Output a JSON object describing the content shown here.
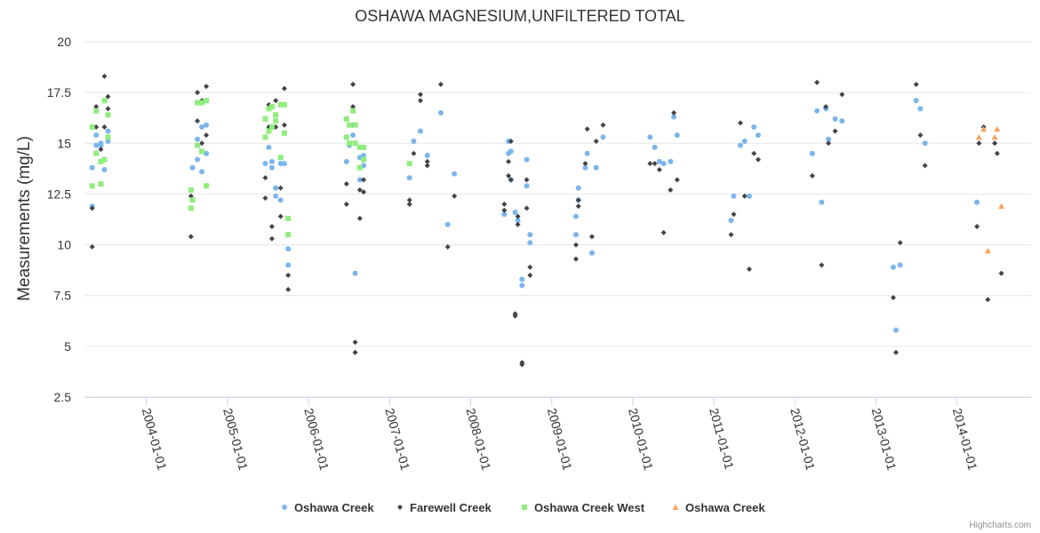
{
  "chart_data": {
    "type": "scatter",
    "title": "OSHAWA MAGNESIUM,UNFILTERED TOTAL",
    "xlabel": "",
    "ylabel": "Measurements (mg/L)",
    "ylim": [
      2.5,
      20
    ],
    "yticks": [
      "2.5",
      "5",
      "7.5",
      "10",
      "12.5",
      "15",
      "17.5",
      "20"
    ],
    "xticks": [
      "2004-01-01",
      "2005-01-01",
      "2006-01-01",
      "2007-01-01",
      "2008-01-01",
      "2009-01-01",
      "2010-01-01",
      "2011-01-01",
      "2012-01-01",
      "2013-01-01",
      "2014-01-01"
    ],
    "xlim": [
      "2003-03-28",
      "2014-12-01"
    ],
    "grid": "horizontal",
    "legend_position": "bottom",
    "credits": "Highcharts.com",
    "series": [
      {
        "name": "Oshawa Creek",
        "color": "#7cb5ec",
        "marker": "circle",
        "points": [
          [
            "2003-05-02",
            13.8
          ],
          [
            "2003-05-02",
            11.9
          ],
          [
            "2003-05-20",
            15.4
          ],
          [
            "2003-05-20",
            14.9
          ],
          [
            "2003-06-10",
            15.0
          ],
          [
            "2003-06-10",
            14.9
          ],
          [
            "2003-06-26",
            13.7
          ],
          [
            "2003-07-12",
            15.6
          ],
          [
            "2003-07-12",
            15.1
          ],
          [
            "2004-07-27",
            13.8
          ],
          [
            "2004-08-18",
            15.2
          ],
          [
            "2004-08-18",
            14.2
          ],
          [
            "2004-09-07",
            15.8
          ],
          [
            "2004-09-07",
            13.6
          ],
          [
            "2004-09-27",
            15.9
          ],
          [
            "2004-09-27",
            14.5
          ],
          [
            "2005-06-20",
            14.0
          ],
          [
            "2005-07-06",
            14.8
          ],
          [
            "2005-07-20",
            14.1
          ],
          [
            "2005-07-20",
            13.8
          ],
          [
            "2005-08-06",
            12.8
          ],
          [
            "2005-08-06",
            12.4
          ],
          [
            "2005-08-28",
            14.0
          ],
          [
            "2005-08-28",
            12.2
          ],
          [
            "2005-09-14",
            14.0
          ],
          [
            "2005-10-01",
            9.8
          ],
          [
            "2005-10-01",
            9.0
          ],
          [
            "2006-06-21",
            14.1
          ],
          [
            "2006-07-04",
            14.9
          ],
          [
            "2006-07-20",
            15.9
          ],
          [
            "2006-07-20",
            15.4
          ],
          [
            "2006-07-30",
            8.6
          ],
          [
            "2006-08-20",
            14.3
          ],
          [
            "2006-08-20",
            13.2
          ],
          [
            "2006-09-06",
            14.4
          ],
          [
            "2006-09-06",
            13.9
          ],
          [
            "2007-04-01",
            13.3
          ],
          [
            "2007-04-20",
            15.1
          ],
          [
            "2007-05-20",
            15.6
          ],
          [
            "2007-06-20",
            14.4
          ],
          [
            "2007-08-20",
            16.5
          ],
          [
            "2007-09-20",
            11.0
          ],
          [
            "2007-10-20",
            13.5
          ],
          [
            "2008-06-01",
            11.5
          ],
          [
            "2008-06-20",
            15.1
          ],
          [
            "2008-06-20",
            14.5
          ],
          [
            "2008-07-01",
            13.2
          ],
          [
            "2008-07-01",
            14.6
          ],
          [
            "2008-07-20",
            11.6
          ],
          [
            "2008-08-01",
            11.2
          ],
          [
            "2008-08-20",
            8.3
          ],
          [
            "2008-08-20",
            8.0
          ],
          [
            "2008-09-10",
            14.2
          ],
          [
            "2008-09-10",
            12.9
          ],
          [
            "2008-09-25",
            10.5
          ],
          [
            "2008-09-25",
            10.1
          ],
          [
            "2009-04-20",
            11.4
          ],
          [
            "2009-04-20",
            10.5
          ],
          [
            "2009-05-01",
            12.8
          ],
          [
            "2009-05-01",
            12.2
          ],
          [
            "2009-06-01",
            13.8
          ],
          [
            "2009-06-10",
            14.5
          ],
          [
            "2009-07-01",
            9.6
          ],
          [
            "2009-07-20",
            13.8
          ],
          [
            "2009-08-20",
            15.3
          ],
          [
            "2010-03-20",
            15.3
          ],
          [
            "2010-04-10",
            14.8
          ],
          [
            "2010-05-01",
            14.1
          ],
          [
            "2010-05-20",
            14.0
          ],
          [
            "2010-06-20",
            14.1
          ],
          [
            "2010-07-05",
            16.3
          ],
          [
            "2010-07-20",
            15.4
          ],
          [
            "2011-03-20",
            11.2
          ],
          [
            "2011-04-01",
            12.4
          ],
          [
            "2011-05-01",
            14.9
          ],
          [
            "2011-05-20",
            15.1
          ],
          [
            "2011-06-10",
            12.4
          ],
          [
            "2011-07-01",
            15.8
          ],
          [
            "2011-07-20",
            15.4
          ],
          [
            "2012-03-20",
            14.5
          ],
          [
            "2012-04-10",
            16.6
          ],
          [
            "2012-05-01",
            12.1
          ],
          [
            "2012-05-20",
            16.7
          ],
          [
            "2012-06-01",
            15.2
          ],
          [
            "2012-07-01",
            16.2
          ],
          [
            "2012-08-01",
            16.1
          ],
          [
            "2013-03-20",
            8.9
          ],
          [
            "2013-04-01",
            5.8
          ],
          [
            "2013-04-20",
            9.0
          ],
          [
            "2013-07-01",
            17.1
          ],
          [
            "2013-07-20",
            16.7
          ],
          [
            "2013-08-10",
            15.0
          ],
          [
            "2014-04-01",
            12.1
          ]
        ]
      },
      {
        "name": "Farewell Creek",
        "color": "#434348",
        "marker": "diamond",
        "points": [
          [
            "2003-05-02",
            9.9
          ],
          [
            "2003-05-02",
            11.8
          ],
          [
            "2003-05-20",
            16.8
          ],
          [
            "2003-05-20",
            15.8
          ],
          [
            "2003-06-10",
            14.7
          ],
          [
            "2003-06-26",
            18.3
          ],
          [
            "2003-06-26",
            15.8
          ],
          [
            "2003-07-12",
            17.3
          ],
          [
            "2003-07-12",
            16.7
          ],
          [
            "2004-07-20",
            10.4
          ],
          [
            "2004-07-20",
            12.4
          ],
          [
            "2004-08-18",
            17.5
          ],
          [
            "2004-08-18",
            16.1
          ],
          [
            "2004-09-07",
            17.1
          ],
          [
            "2004-09-07",
            15.0
          ],
          [
            "2004-09-27",
            17.8
          ],
          [
            "2004-09-27",
            15.4
          ],
          [
            "2005-06-20",
            13.3
          ],
          [
            "2005-06-20",
            12.3
          ],
          [
            "2005-07-06",
            16.9
          ],
          [
            "2005-07-06",
            15.8
          ],
          [
            "2005-07-20",
            10.9
          ],
          [
            "2005-07-20",
            10.3
          ],
          [
            "2005-08-06",
            17.1
          ],
          [
            "2005-08-06",
            15.8
          ],
          [
            "2005-08-28",
            12.8
          ],
          [
            "2005-08-28",
            11.4
          ],
          [
            "2005-09-14",
            17.7
          ],
          [
            "2005-09-14",
            15.9
          ],
          [
            "2005-10-01",
            8.5
          ],
          [
            "2005-10-01",
            7.8
          ],
          [
            "2006-06-21",
            13.0
          ],
          [
            "2006-06-21",
            12.0
          ],
          [
            "2006-07-20",
            17.9
          ],
          [
            "2006-07-20",
            16.8
          ],
          [
            "2006-07-30",
            5.2
          ],
          [
            "2006-07-30",
            4.7
          ],
          [
            "2006-08-20",
            12.7
          ],
          [
            "2006-08-20",
            11.3
          ],
          [
            "2006-09-06",
            13.2
          ],
          [
            "2006-09-06",
            12.6
          ],
          [
            "2007-04-01",
            12.2
          ],
          [
            "2007-04-01",
            12.0
          ],
          [
            "2007-04-20",
            14.5
          ],
          [
            "2007-05-20",
            17.4
          ],
          [
            "2007-05-20",
            17.1
          ],
          [
            "2007-06-20",
            14.1
          ],
          [
            "2007-06-20",
            13.9
          ],
          [
            "2007-08-20",
            17.9
          ],
          [
            "2007-09-20",
            9.9
          ],
          [
            "2007-10-20",
            12.4
          ],
          [
            "2008-06-01",
            12.0
          ],
          [
            "2008-06-01",
            11.7
          ],
          [
            "2008-06-20",
            14.1
          ],
          [
            "2008-06-20",
            13.4
          ],
          [
            "2008-07-01",
            15.1
          ],
          [
            "2008-07-01",
            13.2
          ],
          [
            "2008-07-20",
            6.6
          ],
          [
            "2008-07-20",
            6.5
          ],
          [
            "2008-08-01",
            11.4
          ],
          [
            "2008-08-01",
            11.0
          ],
          [
            "2008-08-20",
            4.2
          ],
          [
            "2008-08-20",
            4.1
          ],
          [
            "2008-09-10",
            13.2
          ],
          [
            "2008-09-10",
            11.8
          ],
          [
            "2008-09-25",
            8.9
          ],
          [
            "2008-09-25",
            8.5
          ],
          [
            "2009-04-20",
            10.0
          ],
          [
            "2009-04-20",
            9.3
          ],
          [
            "2009-05-01",
            12.2
          ],
          [
            "2009-05-01",
            11.9
          ],
          [
            "2009-06-01",
            14.0
          ],
          [
            "2009-06-10",
            15.7
          ],
          [
            "2009-07-01",
            10.4
          ],
          [
            "2009-07-20",
            15.1
          ],
          [
            "2009-08-20",
            15.9
          ],
          [
            "2010-03-20",
            14.0
          ],
          [
            "2010-04-10",
            14.0
          ],
          [
            "2010-05-01",
            13.7
          ],
          [
            "2010-05-20",
            10.6
          ],
          [
            "2010-06-20",
            12.7
          ],
          [
            "2010-07-05",
            16.5
          ],
          [
            "2010-07-20",
            13.2
          ],
          [
            "2011-03-20",
            10.5
          ],
          [
            "2011-04-01",
            11.5
          ],
          [
            "2011-05-01",
            16.0
          ],
          [
            "2011-05-20",
            12.4
          ],
          [
            "2011-06-10",
            8.8
          ],
          [
            "2011-07-01",
            14.5
          ],
          [
            "2011-07-20",
            14.2
          ],
          [
            "2012-03-20",
            13.4
          ],
          [
            "2012-04-10",
            18.0
          ],
          [
            "2012-05-01",
            9.0
          ],
          [
            "2012-05-20",
            16.8
          ],
          [
            "2012-06-01",
            15.0
          ],
          [
            "2012-07-01",
            15.6
          ],
          [
            "2012-08-01",
            17.4
          ],
          [
            "2013-03-20",
            7.4
          ],
          [
            "2013-04-01",
            4.7
          ],
          [
            "2013-04-20",
            10.1
          ],
          [
            "2013-07-01",
            17.9
          ],
          [
            "2013-07-20",
            15.4
          ],
          [
            "2013-08-10",
            13.9
          ],
          [
            "2014-04-01",
            10.9
          ],
          [
            "2014-04-10",
            15.0
          ],
          [
            "2014-05-01",
            15.8
          ],
          [
            "2014-05-20",
            7.3
          ],
          [
            "2014-06-20",
            15.0
          ],
          [
            "2014-07-01",
            14.5
          ],
          [
            "2014-07-20",
            8.6
          ]
        ]
      },
      {
        "name": "Oshawa Creek West",
        "color": "#90ed7d",
        "marker": "square",
        "points": [
          [
            "2003-05-02",
            15.8
          ],
          [
            "2003-05-02",
            12.9
          ],
          [
            "2003-05-20",
            16.6
          ],
          [
            "2003-05-20",
            14.5
          ],
          [
            "2003-06-10",
            14.1
          ],
          [
            "2003-06-10",
            13.0
          ],
          [
            "2003-06-26",
            17.1
          ],
          [
            "2003-06-26",
            14.2
          ],
          [
            "2003-07-12",
            16.4
          ],
          [
            "2003-07-12",
            15.3
          ],
          [
            "2004-07-20",
            12.7
          ],
          [
            "2004-07-20",
            11.8
          ],
          [
            "2004-07-27",
            12.2
          ],
          [
            "2004-08-18",
            17.0
          ],
          [
            "2004-08-18",
            14.9
          ],
          [
            "2004-09-07",
            17.0
          ],
          [
            "2004-09-07",
            14.6
          ],
          [
            "2004-09-27",
            17.1
          ],
          [
            "2004-09-27",
            12.9
          ],
          [
            "2005-06-20",
            16.2
          ],
          [
            "2005-06-20",
            15.3
          ],
          [
            "2005-07-06",
            16.7
          ],
          [
            "2005-07-06",
            15.6
          ],
          [
            "2005-07-20",
            16.8
          ],
          [
            "2005-07-20",
            15.8
          ],
          [
            "2005-08-06",
            16.4
          ],
          [
            "2005-08-06",
            16.1
          ],
          [
            "2005-08-28",
            16.9
          ],
          [
            "2005-08-28",
            14.3
          ],
          [
            "2005-09-14",
            16.9
          ],
          [
            "2005-09-14",
            15.5
          ],
          [
            "2005-10-01",
            11.3
          ],
          [
            "2005-10-01",
            10.5
          ],
          [
            "2006-06-21",
            16.2
          ],
          [
            "2006-06-21",
            15.3
          ],
          [
            "2006-07-04",
            15.9
          ],
          [
            "2006-07-04",
            15.0
          ],
          [
            "2006-07-20",
            16.6
          ],
          [
            "2006-07-30",
            15.9
          ],
          [
            "2006-07-30",
            15.0
          ],
          [
            "2006-08-20",
            14.8
          ],
          [
            "2006-08-20",
            13.8
          ],
          [
            "2006-09-06",
            14.8
          ],
          [
            "2006-09-06",
            14.2
          ],
          [
            "2007-04-01",
            14.0
          ]
        ]
      },
      {
        "name": "Oshawa Creek",
        "color": "#f7a35c",
        "marker": "triangle",
        "points": [
          [
            "2014-04-10",
            15.3
          ],
          [
            "2014-05-01",
            15.7
          ],
          [
            "2014-05-20",
            9.7
          ],
          [
            "2014-06-20",
            15.3
          ],
          [
            "2014-07-01",
            15.7
          ],
          [
            "2014-07-20",
            11.9
          ]
        ]
      }
    ]
  }
}
